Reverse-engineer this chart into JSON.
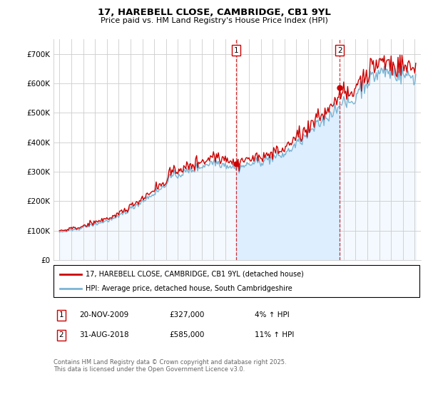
{
  "title_line1": "17, HAREBELL CLOSE, CAMBRIDGE, CB1 9YL",
  "title_line2": "Price paid vs. HM Land Registry's House Price Index (HPI)",
  "ylabel_ticks": [
    "£0",
    "£100K",
    "£200K",
    "£300K",
    "£400K",
    "£500K",
    "£600K",
    "£700K"
  ],
  "ytick_values": [
    0,
    100000,
    200000,
    300000,
    400000,
    500000,
    600000,
    700000
  ],
  "ylim": [
    0,
    750000
  ],
  "xlim_start": 1994.5,
  "xlim_end": 2025.5,
  "xticks": [
    1995,
    1996,
    1997,
    1998,
    1999,
    2000,
    2001,
    2002,
    2003,
    2004,
    2005,
    2006,
    2007,
    2008,
    2009,
    2010,
    2011,
    2012,
    2013,
    2014,
    2015,
    2016,
    2017,
    2018,
    2019,
    2020,
    2021,
    2022,
    2023,
    2024,
    2025
  ],
  "grid_color": "#cccccc",
  "bg_color": "#ffffff",
  "hpi_fill_color": "#ddeeff",
  "hpi_line_color": "#7ab4d4",
  "price_line_color": "#cc0000",
  "vline_color": "#cc0000",
  "sale1_x": 2009.9,
  "sale1_y": 327000,
  "sale1_label": "1",
  "sale1_date": "20-NOV-2009",
  "sale1_price": "£327,000",
  "sale1_hpi": "4% ↑ HPI",
  "sale2_x": 2018.67,
  "sale2_y": 585000,
  "sale2_label": "2",
  "sale2_date": "31-AUG-2018",
  "sale2_price": "£585,000",
  "sale2_hpi": "11% ↑ HPI",
  "legend_label_price": "17, HAREBELL CLOSE, CAMBRIDGE, CB1 9YL (detached house)",
  "legend_label_hpi": "HPI: Average price, detached house, South Cambridgeshire",
  "footnote": "Contains HM Land Registry data © Crown copyright and database right 2025.\nThis data is licensed under the Open Government Licence v3.0."
}
